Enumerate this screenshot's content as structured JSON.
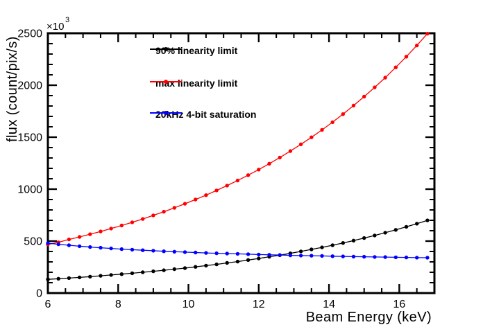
{
  "window": {
    "background": "#ffffff"
  },
  "axes": {
    "x": {
      "major_ticks": [
        6,
        8,
        10,
        12,
        14,
        16
      ],
      "minor_step": 0.5
    },
    "y": {
      "major_ticks": [
        0,
        500,
        1000,
        1500,
        2000,
        2500
      ],
      "minor_step": 100,
      "exponent_base": "×10",
      "exponent_power": "3"
    }
  },
  "legend": {
    "position": "top-left-inside",
    "border": "none"
  },
  "chart_data": {
    "type": "line",
    "title": "",
    "xlabel": "Beam Energy (keV)",
    "ylabel": "flux (count/pix/s)",
    "y_scale_label": "×10³",
    "xlim": [
      6,
      17
    ],
    "ylim": [
      0,
      2500
    ],
    "grid": false,
    "marker": "filled-circle",
    "x": [
      6.0,
      6.3,
      6.6,
      6.9,
      7.2,
      7.5,
      7.8,
      8.1,
      8.4,
      8.7,
      9.0,
      9.3,
      9.6,
      9.9,
      10.2,
      10.5,
      10.8,
      11.1,
      11.4,
      11.7,
      12.0,
      12.3,
      12.6,
      12.9,
      13.2,
      13.5,
      13.8,
      14.1,
      14.4,
      14.7,
      15.0,
      15.3,
      15.6,
      15.9,
      16.2,
      16.5,
      16.8
    ],
    "series": [
      {
        "name": "90% linearity limit",
        "color": "#000000",
        "values": [
          132,
          138,
          144,
          151,
          158,
          166,
          174,
          182,
          191,
          200,
          209,
          219,
          230,
          240,
          252,
          264,
          276,
          290,
          303,
          318,
          333,
          349,
          365,
          382,
          401,
          420,
          439,
          460,
          482,
          505,
          529,
          554,
          581,
          608,
          637,
          667,
          699
        ]
      },
      {
        "name": "max linearity limit",
        "color": "#ff0000",
        "values": [
          468,
          488,
          516,
          540,
          566,
          593,
          621,
          650,
          681,
          713,
          747,
          783,
          820,
          859,
          900,
          942,
          987,
          1034,
          1083,
          1135,
          1188,
          1245,
          1304,
          1366,
          1431,
          1499,
          1570,
          1644,
          1722,
          1804,
          1890,
          1979,
          2073,
          2172,
          2275,
          2383,
          2496
        ]
      },
      {
        "name": "20kHz 4-bit saturation",
        "color": "#0000ff",
        "values": [
          480,
          469,
          460,
          451,
          443,
          436,
          429,
          423,
          417,
          412,
          407,
          402,
          398,
          394,
          390,
          386,
          383,
          380,
          377,
          374,
          371,
          368,
          366,
          363,
          361,
          359,
          357,
          355,
          353,
          351,
          349,
          347,
          346,
          344,
          343,
          341,
          340
        ]
      }
    ]
  }
}
